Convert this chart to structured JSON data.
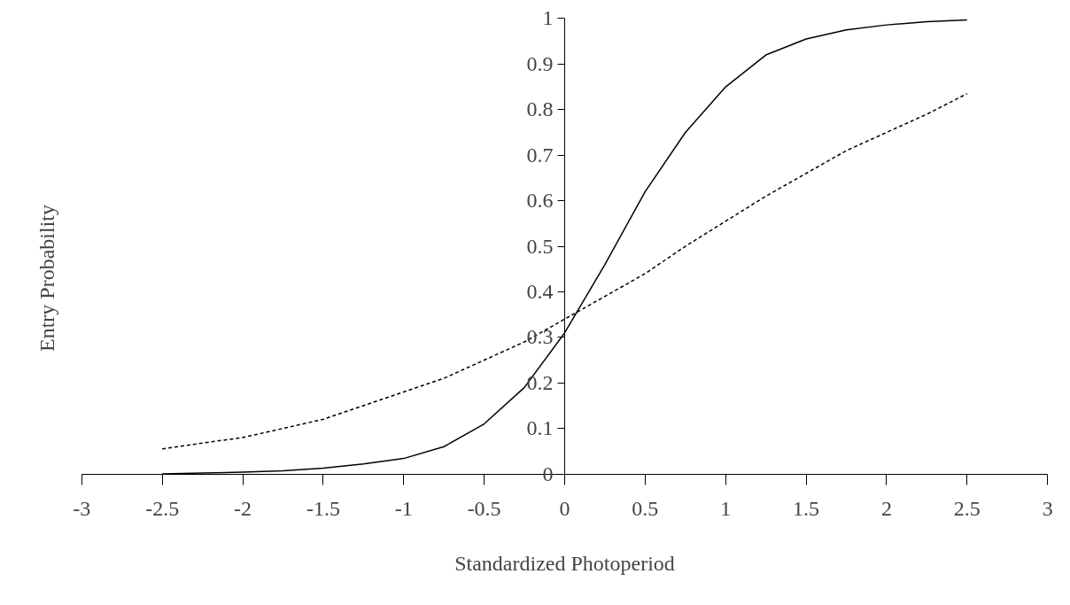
{
  "chart_data": {
    "type": "line",
    "xlabel": "Standardized Photoperiod",
    "ylabel": "Entry Probability",
    "xlim": [
      -3,
      3
    ],
    "ylim": [
      0,
      1
    ],
    "xticks": [
      -3,
      -2.5,
      -2,
      -1.5,
      -1,
      -0.5,
      0,
      0.5,
      1,
      1.5,
      2,
      2.5,
      3
    ],
    "yticks": [
      0,
      0.1,
      0.2,
      0.3,
      0.4,
      0.5,
      0.6,
      0.7,
      0.8,
      0.9,
      1
    ],
    "series": [
      {
        "color": "#000000",
        "line_style": "solid",
        "x": [
          -2.5,
          -2.25,
          -2,
          -1.75,
          -1.5,
          -1.25,
          -1,
          -0.75,
          -0.5,
          -0.25,
          0,
          0.25,
          0.5,
          0.75,
          1,
          1.25,
          1.5,
          1.75,
          2,
          2.25,
          2.5
        ],
        "values": [
          0.0,
          0.002,
          0.004,
          0.007,
          0.013,
          0.022,
          0.034,
          0.06,
          0.11,
          0.19,
          0.31,
          0.46,
          0.62,
          0.75,
          0.85,
          0.92,
          0.955,
          0.975,
          0.986,
          0.993,
          0.997
        ]
      },
      {
        "color": "#000000",
        "line_style": "dashed",
        "x": [
          -2.5,
          -2.25,
          -2,
          -1.75,
          -1.5,
          -1.25,
          -1,
          -0.75,
          -0.5,
          -0.25,
          0,
          0.25,
          0.5,
          0.75,
          1,
          1.25,
          1.5,
          1.75,
          2,
          2.25,
          2.5
        ],
        "values": [
          0.055,
          0.068,
          0.08,
          0.1,
          0.12,
          0.15,
          0.18,
          0.21,
          0.25,
          0.29,
          0.34,
          0.39,
          0.44,
          0.5,
          0.555,
          0.61,
          0.66,
          0.71,
          0.75,
          0.79,
          0.835
        ]
      }
    ]
  }
}
